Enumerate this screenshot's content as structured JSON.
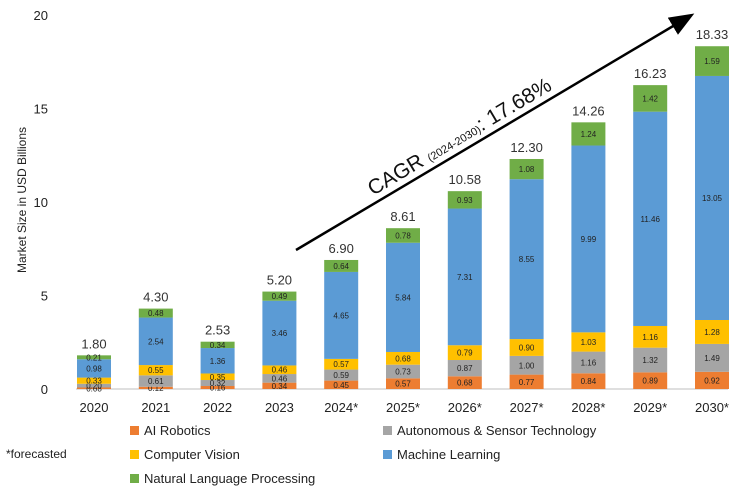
{
  "chart_data": {
    "type": "bar",
    "stacked": true,
    "ylabel": "Market Size in USD Billions",
    "ylim": [
      0,
      20
    ],
    "yticks": [
      "0",
      "5",
      "10",
      "15",
      "20"
    ],
    "grid": false,
    "legend_position": "bottom",
    "categories": [
      "2020",
      "2021",
      "2022",
      "2023",
      "2024*",
      "2025*",
      "2026*",
      "2027*",
      "2028*",
      "2029*",
      "2030*"
    ],
    "totals": [
      "1.80",
      "4.30",
      "2.53",
      "5.20",
      "6.90",
      "8.61",
      "10.58",
      "12.30",
      "14.26",
      "16.23",
      "18.33"
    ],
    "series": [
      {
        "name": "AI Robotics",
        "color": "#ED7D31",
        "values": [
          0.08,
          0.12,
          0.16,
          0.34,
          0.45,
          0.57,
          0.68,
          0.77,
          0.84,
          0.89,
          0.92
        ],
        "labels": [
          "0.08",
          "0.12",
          "0.16",
          "0.34",
          "0.45",
          "0.57",
          "0.68",
          "0.77",
          "0.84",
          "0.89",
          "0.92"
        ]
      },
      {
        "name": "Autonomous & Sensor Technology",
        "color": "#A5A5A5",
        "values": [
          0.2,
          0.61,
          0.32,
          0.46,
          0.59,
          0.73,
          0.87,
          1.0,
          1.16,
          1.32,
          1.49
        ],
        "labels": [
          "0.20",
          "0.61",
          "0.32",
          "0.46",
          "0.59",
          "0.73",
          "0.87",
          "1.00",
          "1.16",
          "1.32",
          "1.49"
        ]
      },
      {
        "name": "Computer Vision",
        "color": "#FFC000",
        "values": [
          0.33,
          0.55,
          0.35,
          0.46,
          0.57,
          0.68,
          0.79,
          0.9,
          1.03,
          1.16,
          1.28
        ],
        "labels": [
          "0.33",
          "0.55",
          "0.35",
          "0.46",
          "0.57",
          "0.68",
          "0.79",
          "0.90",
          "1.03",
          "1.16",
          "1.28"
        ]
      },
      {
        "name": "Machine Learning",
        "color": "#5B9BD5",
        "values": [
          0.98,
          2.54,
          1.36,
          3.46,
          4.65,
          5.84,
          7.31,
          8.55,
          9.99,
          11.46,
          13.05
        ],
        "labels": [
          "0.98",
          "2.54",
          "1.36",
          "3.46",
          "4.65",
          "5.84",
          "7.31",
          "8.55",
          "9.99",
          "11.46",
          "13.05"
        ]
      },
      {
        "name": "Natural Language Processing",
        "color": "#70AD47",
        "values": [
          0.21,
          0.48,
          0.34,
          0.49,
          0.64,
          0.78,
          0.93,
          1.08,
          1.24,
          1.42,
          1.59
        ],
        "labels": [
          "0.21",
          "0.48",
          "0.34",
          "0.49",
          "0.64",
          "0.78",
          "0.93",
          "1.08",
          "1.24",
          "1.42",
          "1.59"
        ]
      }
    ],
    "annotation": {
      "prefix": "CAGR ",
      "sub": "(2024-2030)",
      "suffix": ": 17.68%"
    },
    "footnote": "*forecasted"
  }
}
